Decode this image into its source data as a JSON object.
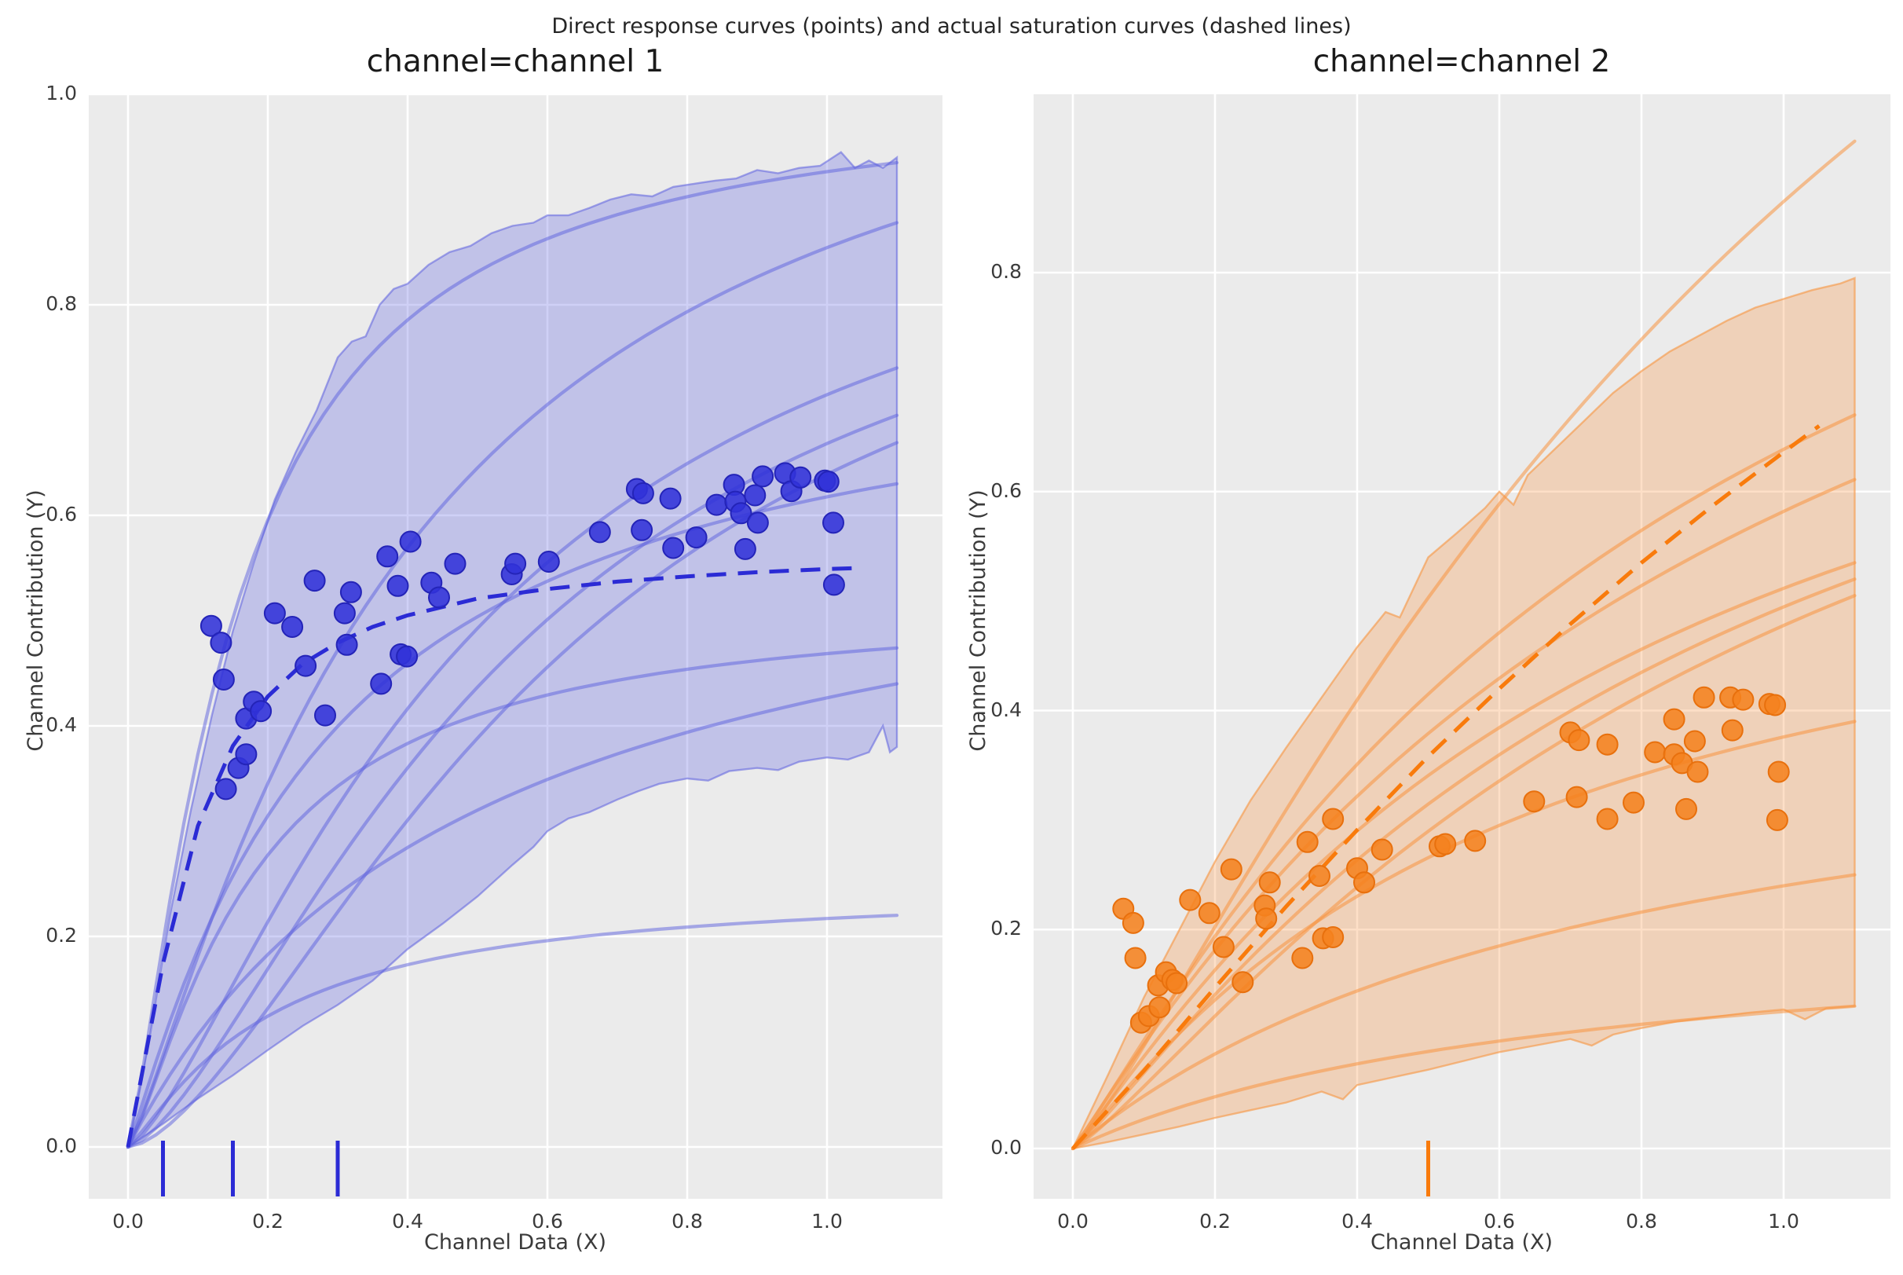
{
  "suptitle": "Direct response curves (points) and actual saturation curves (dashed lines)",
  "figure": {
    "background": "#ffffff",
    "panel_background": "#ebebeb",
    "grid_color": "#ffffff",
    "tick_color": "#3b3b3b",
    "title_color": "#1a1a1a"
  },
  "chart_data": [
    {
      "type": "scatter",
      "title": "channel=channel 1",
      "xlabel": "Channel Data (X)",
      "ylabel": "Channel Contribution (Y)",
      "xticks": [
        "0.0",
        "0.2",
        "0.4",
        "0.6",
        "0.8",
        "1.0"
      ],
      "xtick_values": [
        0,
        0.2,
        0.4,
        0.6,
        0.8,
        1.0
      ],
      "yticks": [
        "0.0",
        "0.2",
        "0.4",
        "0.6",
        "0.8",
        "1.0"
      ],
      "ytick_values": [
        0,
        0.2,
        0.4,
        0.6,
        0.8,
        1.0
      ],
      "xlim": [
        -0.056,
        1.165
      ],
      "ylim": [
        -0.049,
        1.0
      ],
      "legend": "none",
      "grid": true,
      "colors": {
        "point_fill": "#3132d8",
        "point_edge": "#2424b8",
        "dashed": "#2b2bd5",
        "solid_line": "rgba(92,96,222,0.50)",
        "band_fill": "rgba(105,108,228,0.32)",
        "band_edge": "rgba(92,96,222,0.55)",
        "rug": "#2b2bd5"
      },
      "rug_x": [
        0.05,
        0.15,
        0.3
      ],
      "dashed_curve": [
        [
          0,
          0
        ],
        [
          0.05,
          0.174
        ],
        [
          0.1,
          0.305
        ],
        [
          0.15,
          0.381
        ],
        [
          0.2,
          0.428
        ],
        [
          0.25,
          0.459
        ],
        [
          0.3,
          0.479
        ],
        [
          0.35,
          0.494
        ],
        [
          0.4,
          0.505
        ],
        [
          0.5,
          0.521
        ],
        [
          0.6,
          0.53
        ],
        [
          0.7,
          0.537
        ],
        [
          0.8,
          0.542
        ],
        [
          0.9,
          0.546
        ],
        [
          1.0,
          0.549
        ],
        [
          1.05,
          0.55
        ]
      ],
      "solid_curves": [
        {
          "end_y": 0.935,
          "k": 0.15,
          "p": 1.3
        },
        {
          "end_y": 0.878,
          "k": 0.4,
          "p": 1.2
        },
        {
          "end_y": 0.74,
          "k": 0.5,
          "p": 1.4
        },
        {
          "end_y": 0.695,
          "k": 0.55,
          "p": 1.5
        },
        {
          "end_y": 0.669,
          "k": 0.62,
          "p": 1.6
        },
        {
          "end_y": 0.63,
          "k": 0.28,
          "p": 1.1
        },
        {
          "end_y": 0.474,
          "k": 0.18,
          "p": 1.3
        },
        {
          "end_y": 0.44,
          "k": 0.5,
          "p": 1.0
        },
        {
          "end_y": 0.22,
          "k": 0.2,
          "p": 1.2
        }
      ],
      "band": {
        "top": [
          [
            0,
            0
          ],
          [
            0.03,
            0.1
          ],
          [
            0.06,
            0.22
          ],
          [
            0.09,
            0.32
          ],
          [
            0.12,
            0.41
          ],
          [
            0.15,
            0.49
          ],
          [
            0.18,
            0.555
          ],
          [
            0.21,
            0.615
          ],
          [
            0.24,
            0.66
          ],
          [
            0.27,
            0.7
          ],
          [
            0.3,
            0.75
          ],
          [
            0.32,
            0.765
          ],
          [
            0.34,
            0.77
          ],
          [
            0.36,
            0.8
          ],
          [
            0.38,
            0.815
          ],
          [
            0.4,
            0.82
          ],
          [
            0.43,
            0.838
          ],
          [
            0.46,
            0.85
          ],
          [
            0.49,
            0.856
          ],
          [
            0.52,
            0.868
          ],
          [
            0.55,
            0.875
          ],
          [
            0.58,
            0.878
          ],
          [
            0.6,
            0.885
          ],
          [
            0.63,
            0.885
          ],
          [
            0.66,
            0.892
          ],
          [
            0.69,
            0.9
          ],
          [
            0.72,
            0.905
          ],
          [
            0.75,
            0.903
          ],
          [
            0.78,
            0.912
          ],
          [
            0.81,
            0.915
          ],
          [
            0.84,
            0.918
          ],
          [
            0.87,
            0.92
          ],
          [
            0.9,
            0.928
          ],
          [
            0.93,
            0.925
          ],
          [
            0.96,
            0.93
          ],
          [
            0.99,
            0.932
          ],
          [
            1.02,
            0.945
          ],
          [
            1.04,
            0.93
          ],
          [
            1.06,
            0.937
          ],
          [
            1.08,
            0.93
          ],
          [
            1.1,
            0.94
          ]
        ],
        "bottom": [
          [
            0,
            0
          ],
          [
            0.05,
            0.022
          ],
          [
            0.1,
            0.046
          ],
          [
            0.15,
            0.068
          ],
          [
            0.2,
            0.092
          ],
          [
            0.25,
            0.115
          ],
          [
            0.3,
            0.135
          ],
          [
            0.35,
            0.158
          ],
          [
            0.4,
            0.188
          ],
          [
            0.45,
            0.212
          ],
          [
            0.5,
            0.238
          ],
          [
            0.55,
            0.268
          ],
          [
            0.58,
            0.285
          ],
          [
            0.6,
            0.3
          ],
          [
            0.63,
            0.312
          ],
          [
            0.66,
            0.318
          ],
          [
            0.7,
            0.33
          ],
          [
            0.73,
            0.338
          ],
          [
            0.76,
            0.345
          ],
          [
            0.8,
            0.35
          ],
          [
            0.83,
            0.348
          ],
          [
            0.86,
            0.357
          ],
          [
            0.9,
            0.36
          ],
          [
            0.93,
            0.358
          ],
          [
            0.96,
            0.366
          ],
          [
            1.0,
            0.37
          ],
          [
            1.03,
            0.368
          ],
          [
            1.06,
            0.375
          ],
          [
            1.08,
            0.4
          ],
          [
            1.09,
            0.375
          ],
          [
            1.1,
            0.38
          ]
        ]
      },
      "points": [
        [
          0.119,
          0.495
        ],
        [
          0.133,
          0.479
        ],
        [
          0.137,
          0.444
        ],
        [
          0.14,
          0.34
        ],
        [
          0.158,
          0.36
        ],
        [
          0.169,
          0.373
        ],
        [
          0.169,
          0.407
        ],
        [
          0.18,
          0.423
        ],
        [
          0.19,
          0.414
        ],
        [
          0.21,
          0.507
        ],
        [
          0.235,
          0.494
        ],
        [
          0.254,
          0.457
        ],
        [
          0.267,
          0.538
        ],
        [
          0.282,
          0.41
        ],
        [
          0.31,
          0.507
        ],
        [
          0.313,
          0.477
        ],
        [
          0.319,
          0.527
        ],
        [
          0.362,
          0.44
        ],
        [
          0.371,
          0.561
        ],
        [
          0.386,
          0.533
        ],
        [
          0.39,
          0.468
        ],
        [
          0.399,
          0.466
        ],
        [
          0.404,
          0.575
        ],
        [
          0.434,
          0.536
        ],
        [
          0.445,
          0.522
        ],
        [
          0.468,
          0.554
        ],
        [
          0.549,
          0.544
        ],
        [
          0.554,
          0.554
        ],
        [
          0.602,
          0.556
        ],
        [
          0.675,
          0.584
        ],
        [
          0.728,
          0.625
        ],
        [
          0.737,
          0.621
        ],
        [
          0.735,
          0.586
        ],
        [
          0.776,
          0.616
        ],
        [
          0.78,
          0.569
        ],
        [
          0.813,
          0.579
        ],
        [
          0.842,
          0.61
        ],
        [
          0.867,
          0.629
        ],
        [
          0.869,
          0.613
        ],
        [
          0.877,
          0.602
        ],
        [
          0.883,
          0.568
        ],
        [
          0.897,
          0.619
        ],
        [
          0.901,
          0.593
        ],
        [
          0.908,
          0.637
        ],
        [
          0.94,
          0.64
        ],
        [
          0.949,
          0.623
        ],
        [
          0.962,
          0.636
        ],
        [
          0.997,
          0.633
        ],
        [
          1.002,
          0.632
        ],
        [
          1.009,
          0.593
        ],
        [
          1.01,
          0.534
        ]
      ]
    },
    {
      "type": "scatter",
      "title": "channel=channel 2",
      "xlabel": "Channel Data (X)",
      "ylabel": "Channel Contribution (Y)",
      "xticks": [
        "0.0",
        "0.2",
        "0.4",
        "0.6",
        "0.8",
        "1.0"
      ],
      "xtick_values": [
        0,
        0.2,
        0.4,
        0.6,
        0.8,
        1.0
      ],
      "yticks": [
        "0.0",
        "0.2",
        "0.4",
        "0.6",
        "0.8"
      ],
      "ytick_values": [
        0,
        0.2,
        0.4,
        0.6,
        0.8
      ],
      "xlim": [
        -0.055,
        1.15
      ],
      "ylim": [
        -0.046,
        0.963
      ],
      "legend": "none",
      "grid": true,
      "colors": {
        "point_fill": "#f5821f",
        "point_edge": "#e8700d",
        "dashed": "#f97b0c",
        "solid_line": "rgba(247,148,64,0.55)",
        "band_fill": "rgba(247,150,70,0.30)",
        "band_edge": "rgba(247,148,64,0.60)",
        "rug": "#f97b0c"
      },
      "rug_x": [
        0.5
      ],
      "dashed_curve": [
        [
          0,
          0
        ],
        [
          0.1,
          0.071
        ],
        [
          0.2,
          0.147
        ],
        [
          0.3,
          0.221
        ],
        [
          0.4,
          0.291
        ],
        [
          0.5,
          0.358
        ],
        [
          0.6,
          0.42
        ],
        [
          0.7,
          0.479
        ],
        [
          0.8,
          0.535
        ],
        [
          0.9,
          0.587
        ],
        [
          1.0,
          0.636
        ],
        [
          1.05,
          0.66
        ]
      ],
      "solid_curves": [
        {
          "end_y": 0.92,
          "k": 1.2,
          "p": 1.2
        },
        {
          "end_y": 0.67,
          "k": 0.9,
          "p": 1.1
        },
        {
          "end_y": 0.611,
          "k": 1.0,
          "p": 1.05
        },
        {
          "end_y": 0.535,
          "k": 0.8,
          "p": 1.1
        },
        {
          "end_y": 0.52,
          "k": 0.9,
          "p": 1.15
        },
        {
          "end_y": 0.505,
          "k": 1.0,
          "p": 1.2
        },
        {
          "end_y": 0.39,
          "k": 0.6,
          "p": 1.1
        },
        {
          "end_y": 0.25,
          "k": 0.8,
          "p": 1.0
        },
        {
          "end_y": 0.13,
          "k": 0.7,
          "p": 1.0
        }
      ],
      "band": {
        "top": [
          [
            0,
            0
          ],
          [
            0.05,
            0.068
          ],
          [
            0.1,
            0.138
          ],
          [
            0.15,
            0.2
          ],
          [
            0.2,
            0.262
          ],
          [
            0.25,
            0.318
          ],
          [
            0.3,
            0.366
          ],
          [
            0.35,
            0.412
          ],
          [
            0.4,
            0.458
          ],
          [
            0.44,
            0.49
          ],
          [
            0.46,
            0.485
          ],
          [
            0.5,
            0.54
          ],
          [
            0.54,
            0.562
          ],
          [
            0.58,
            0.585
          ],
          [
            0.6,
            0.6
          ],
          [
            0.62,
            0.588
          ],
          [
            0.64,
            0.615
          ],
          [
            0.68,
            0.64
          ],
          [
            0.72,
            0.665
          ],
          [
            0.76,
            0.69
          ],
          [
            0.8,
            0.71
          ],
          [
            0.84,
            0.728
          ],
          [
            0.88,
            0.742
          ],
          [
            0.92,
            0.756
          ],
          [
            0.96,
            0.768
          ],
          [
            1.0,
            0.776
          ],
          [
            1.04,
            0.784
          ],
          [
            1.08,
            0.79
          ],
          [
            1.1,
            0.795
          ]
        ],
        "bottom": [
          [
            0,
            0
          ],
          [
            0.05,
            0.006
          ],
          [
            0.1,
            0.013
          ],
          [
            0.15,
            0.02
          ],
          [
            0.2,
            0.028
          ],
          [
            0.25,
            0.035
          ],
          [
            0.3,
            0.042
          ],
          [
            0.35,
            0.052
          ],
          [
            0.38,
            0.045
          ],
          [
            0.4,
            0.058
          ],
          [
            0.45,
            0.065
          ],
          [
            0.5,
            0.072
          ],
          [
            0.55,
            0.08
          ],
          [
            0.6,
            0.088
          ],
          [
            0.65,
            0.094
          ],
          [
            0.7,
            0.1
          ],
          [
            0.73,
            0.094
          ],
          [
            0.76,
            0.104
          ],
          [
            0.8,
            0.11
          ],
          [
            0.85,
            0.116
          ],
          [
            0.9,
            0.12
          ],
          [
            0.95,
            0.124
          ],
          [
            1.0,
            0.127
          ],
          [
            1.03,
            0.118
          ],
          [
            1.06,
            0.128
          ],
          [
            1.1,
            0.13
          ]
        ]
      },
      "points": [
        [
          0.071,
          0.219
        ],
        [
          0.085,
          0.206
        ],
        [
          0.088,
          0.174
        ],
        [
          0.096,
          0.115
        ],
        [
          0.107,
          0.121
        ],
        [
          0.122,
          0.129
        ],
        [
          0.12,
          0.149
        ],
        [
          0.131,
          0.161
        ],
        [
          0.14,
          0.154
        ],
        [
          0.146,
          0.151
        ],
        [
          0.165,
          0.227
        ],
        [
          0.192,
          0.215
        ],
        [
          0.212,
          0.184
        ],
        [
          0.223,
          0.255
        ],
        [
          0.239,
          0.152
        ],
        [
          0.27,
          0.222
        ],
        [
          0.272,
          0.21
        ],
        [
          0.277,
          0.243
        ],
        [
          0.323,
          0.174
        ],
        [
          0.33,
          0.28
        ],
        [
          0.347,
          0.249
        ],
        [
          0.352,
          0.192
        ],
        [
          0.366,
          0.193
        ],
        [
          0.366,
          0.301
        ],
        [
          0.4,
          0.256
        ],
        [
          0.41,
          0.243
        ],
        [
          0.435,
          0.273
        ],
        [
          0.516,
          0.276
        ],
        [
          0.524,
          0.278
        ],
        [
          0.566,
          0.281
        ],
        [
          0.649,
          0.317
        ],
        [
          0.7,
          0.38
        ],
        [
          0.709,
          0.321
        ],
        [
          0.712,
          0.373
        ],
        [
          0.752,
          0.369
        ],
        [
          0.752,
          0.301
        ],
        [
          0.789,
          0.316
        ],
        [
          0.819,
          0.362
        ],
        [
          0.846,
          0.392
        ],
        [
          0.846,
          0.36
        ],
        [
          0.857,
          0.352
        ],
        [
          0.863,
          0.31
        ],
        [
          0.875,
          0.372
        ],
        [
          0.879,
          0.344
        ],
        [
          0.888,
          0.412
        ],
        [
          0.925,
          0.412
        ],
        [
          0.928,
          0.382
        ],
        [
          0.943,
          0.41
        ],
        [
          0.98,
          0.406
        ],
        [
          0.988,
          0.405
        ],
        [
          0.991,
          0.3
        ],
        [
          0.993,
          0.344
        ]
      ]
    }
  ]
}
